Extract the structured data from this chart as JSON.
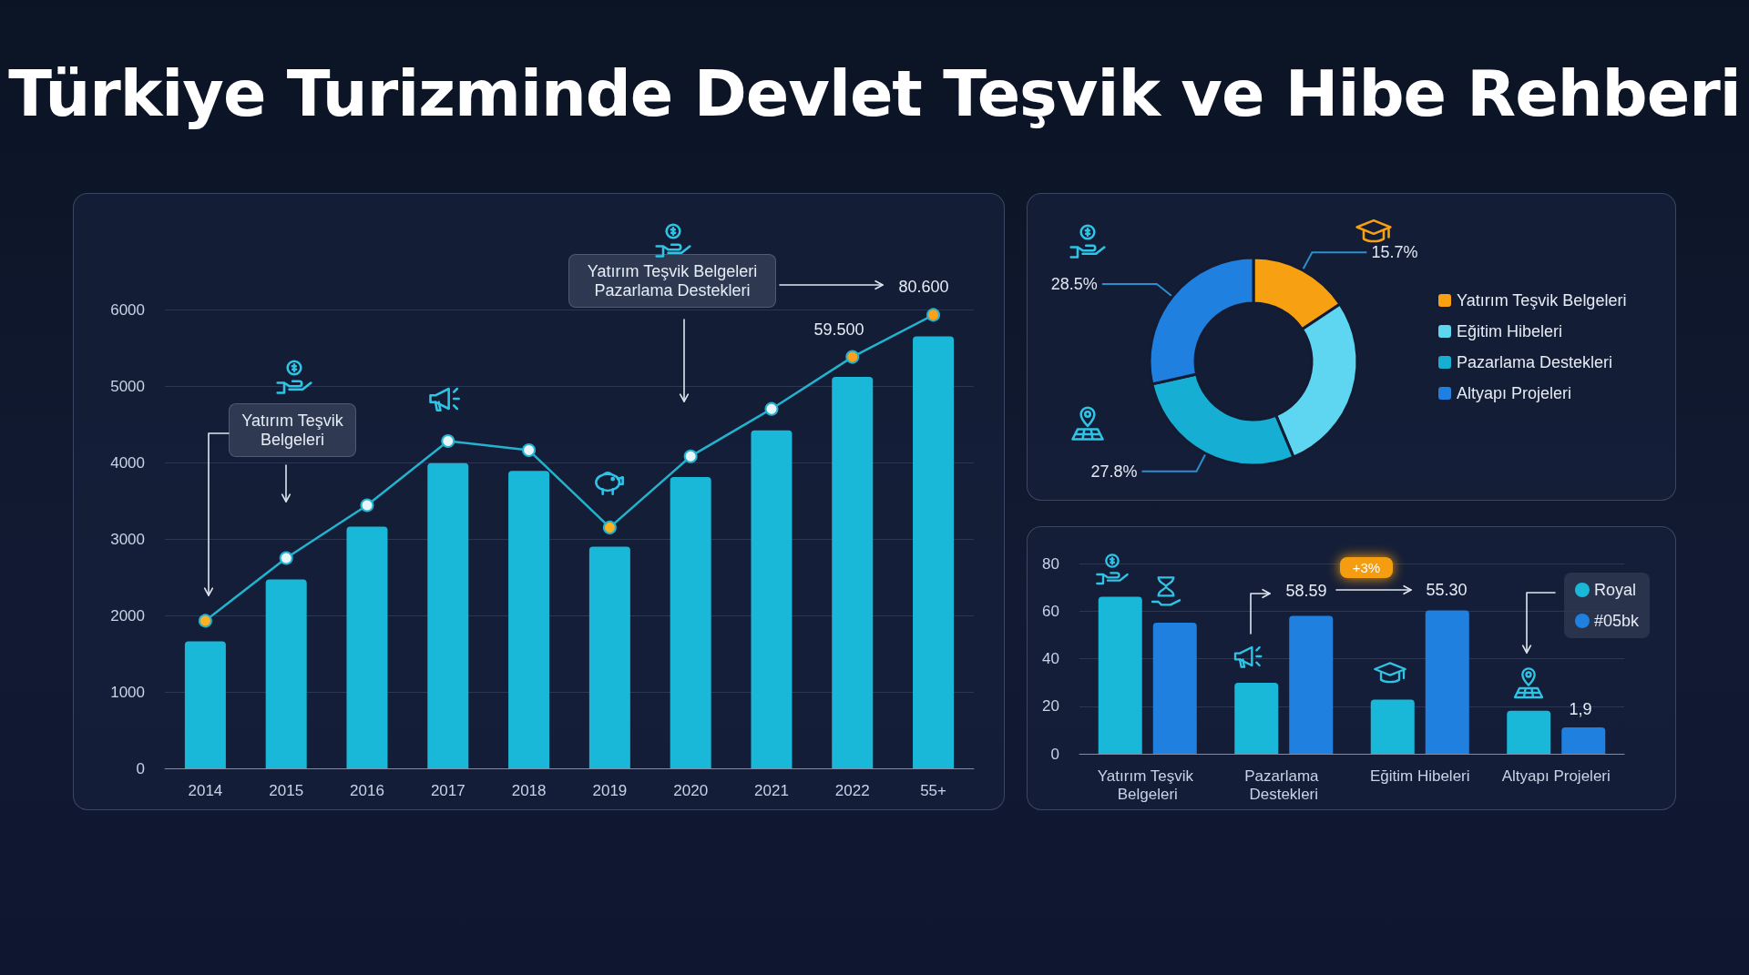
{
  "chart_data": [
    {
      "type": "bar",
      "title": "Türkiye Turizminde Devlet Teşvik ve Hibe Rehberi",
      "categories": [
        "2014",
        "2015",
        "2016",
        "2017",
        "2018",
        "2019",
        "2020",
        "2021",
        "2022",
        "55+"
      ],
      "series": [
        {
          "type": "bar",
          "color": "#1ab8d8",
          "values": [
            1660,
            2470,
            3160,
            3990,
            3890,
            2900,
            3810,
            4420,
            5120,
            5650
          ]
        },
        {
          "type": "line",
          "color": "#23b3cf",
          "colors": [
            "#ffb020",
            "#e8f6fb",
            "#e8f6fb",
            "#e8f6fb",
            "#e8f6fb",
            "#ffb020",
            "#e8f6fb",
            "#e8f6fb",
            "#ff9f1a",
            "#ff9f1a"
          ],
          "marker": "circle",
          "values": [
            1930,
            2750,
            3440,
            4280,
            4160,
            3150,
            4080,
            4700,
            5380,
            5930
          ]
        }
      ],
      "ylim": [
        0,
        6000
      ],
      "yticks": [
        0,
        1000,
        2000,
        3000,
        4000,
        5000,
        6000
      ],
      "grid": "y",
      "annotations": [
        "Yatırım Teşvik Belgeleri",
        "Yatırım Teşvik Belgeleri Pazarlama Destekleri",
        "59.500",
        "80.600"
      ]
    },
    {
      "type": "donut",
      "categories": [
        "Yatırım Teşvik Belgeleri",
        "Eğitim Hibeleri",
        "Pazarlama Destekleri",
        "Altyapı Projeleri"
      ],
      "values": [
        15.7,
        28.0,
        27.8,
        28.5
      ],
      "colors": [
        "#f7a012",
        "#5ed6f2",
        "#16aed2",
        "#1f80e0"
      ],
      "value_labels": [
        "15.7%",
        null,
        "27.8%",
        "28.5%"
      ],
      "legend": "right"
    },
    {
      "type": "bar",
      "categories": [
        "Yatırım Teşvik Belgeleri",
        "Pazarlama Destekleri",
        "Eğitim Hibeleri",
        "Altyapı Projeleri"
      ],
      "series": [
        {
          "name": "Royal",
          "color": "#1ab8d8",
          "values": [
            66.0,
            29.9,
            22.8,
            18.1
          ]
        },
        {
          "name": "#05bk",
          "color": "#1f80e0",
          "values": [
            55.1,
            58.0,
            60.3,
            11.1
          ]
        }
      ],
      "ylim": [
        0,
        80
      ],
      "yticks": [
        0,
        20,
        40,
        60,
        80
      ],
      "grid": "y",
      "legend": "top right",
      "annotations": [
        "+3%",
        "58.59",
        "55.30",
        "1,9"
      ]
    }
  ]
}
